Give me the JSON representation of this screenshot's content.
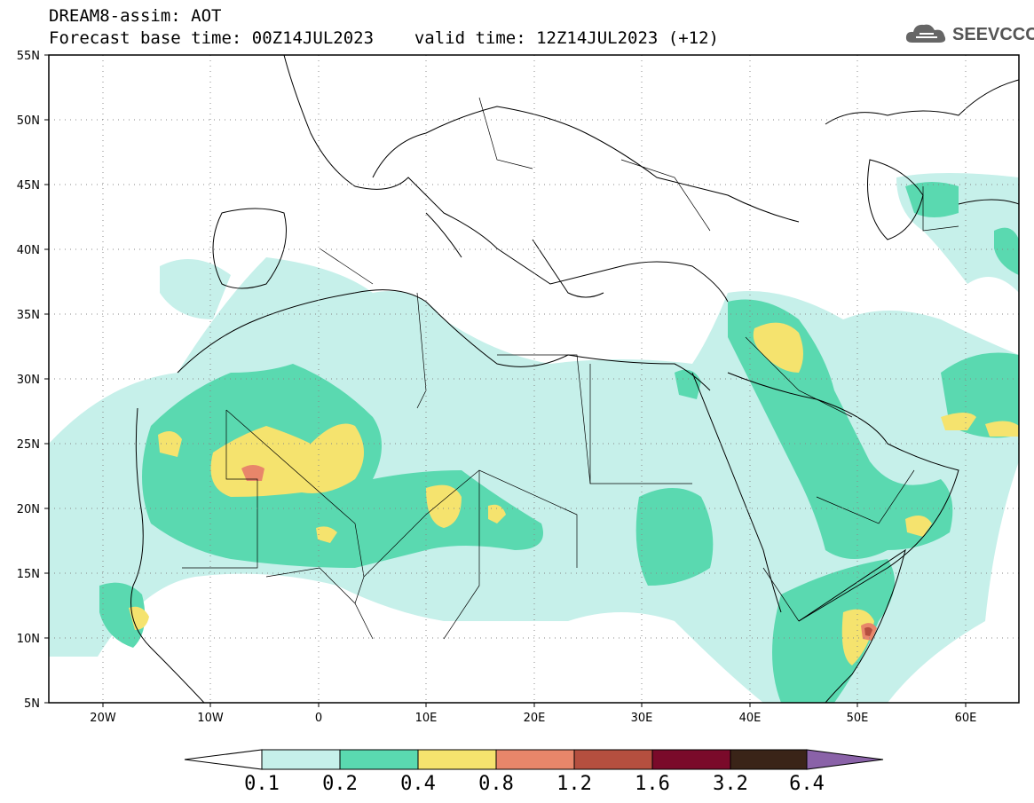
{
  "header": {
    "title": "DREAM8-assim: AOT",
    "base_time": "Forecast base time: 00Z14JUL2023",
    "valid_time": "valid time: 12Z14JUL2023 (+12)",
    "logo_text": "SEEVCCC"
  },
  "map": {
    "lat_labels": [
      "55N",
      "50N",
      "45N",
      "40N",
      "35N",
      "30N",
      "25N",
      "20N",
      "15N",
      "10N",
      "5N"
    ],
    "lon_labels": [
      "20W",
      "10W",
      "0",
      "10E",
      "20E",
      "30E",
      "40E",
      "50E",
      "60E"
    ]
  },
  "colorbar": {
    "labels": [
      "0.1",
      "0.2",
      "0.4",
      "0.8",
      "1.2",
      "1.6",
      "3.2",
      "6.4"
    ],
    "colors": [
      "#c6f0ea",
      "#5ad9b0",
      "#f5e36e",
      "#e8866a",
      "#b54f3f",
      "#7a0a2a",
      "#3a2418",
      "#8a62a8"
    ]
  }
}
